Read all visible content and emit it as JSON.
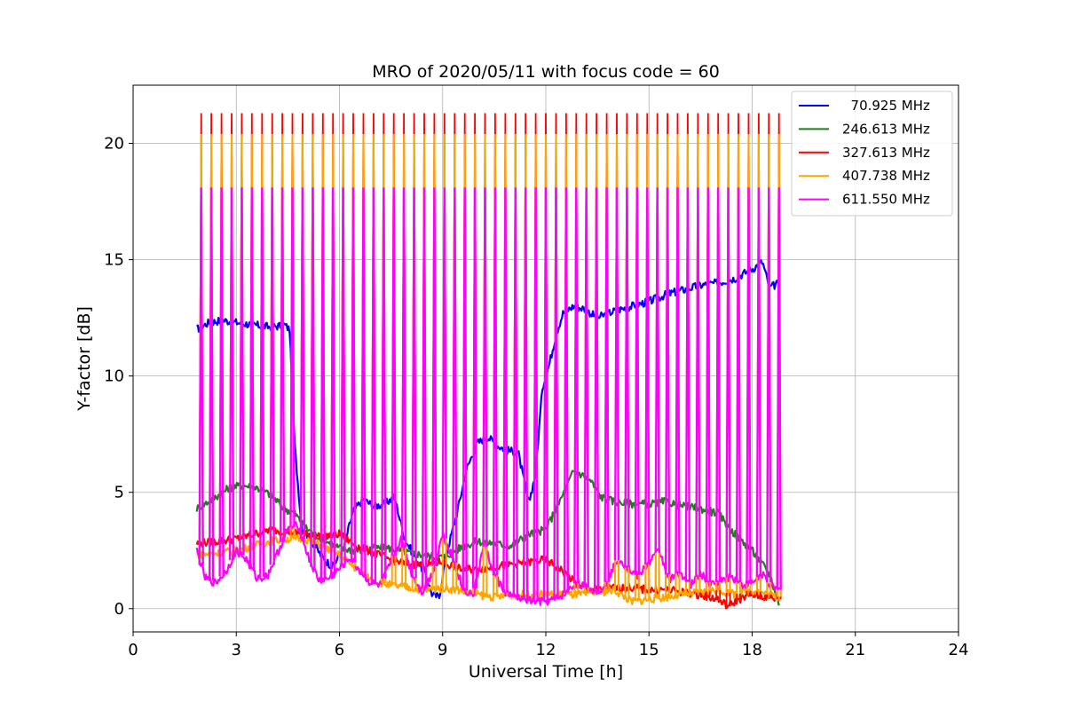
{
  "chart_data": {
    "type": "line",
    "title": "MRO of 2020/05/11 with focus code = 60",
    "xlabel": "Universal Time [h]",
    "ylabel": "Y-factor [dB]",
    "xlim": [
      0,
      24
    ],
    "ylim": [
      -1,
      22.5
    ],
    "xticks": [
      0,
      3,
      6,
      9,
      12,
      15,
      18,
      21,
      24
    ],
    "yticks": [
      0,
      5,
      10,
      15,
      20
    ],
    "grid": true,
    "legend_position": "top-right",
    "pulse_spikes": {
      "description_source": "periodic calibration spikes present in all series",
      "start_time": 1.98,
      "end_time": 18.78,
      "count": 58,
      "peak_values": {
        "70.925 MHz": 21.3,
        "246.613 MHz": 21.3,
        "327.613 MHz": 21.3,
        "407.738 MHz": 20.4,
        "611.550 MHz": 18.1
      }
    },
    "series": [
      {
        "name": "  70.925 MHz",
        "color": "#0000ff",
        "x": [
          1.85,
          2.2,
          2.6,
          3.0,
          3.5,
          4.0,
          4.4,
          4.55,
          4.7,
          4.9,
          5.2,
          5.5,
          5.8,
          6.1,
          6.4,
          6.7,
          7.0,
          7.3,
          7.6,
          7.9,
          8.2,
          8.5,
          8.7,
          8.9,
          9.1,
          9.4,
          9.7,
          10.0,
          10.3,
          10.6,
          10.9,
          11.2,
          11.5,
          11.7,
          11.9,
          12.1,
          12.3,
          12.5,
          12.8,
          13.1,
          13.5,
          14.0,
          14.5,
          15.0,
          15.5,
          16.0,
          16.5,
          17.0,
          17.5,
          18.0,
          18.3,
          18.5,
          18.8
        ],
        "values": [
          12.0,
          12.3,
          12.4,
          12.3,
          12.2,
          12.1,
          12.2,
          12.0,
          7.0,
          3.5,
          2.9,
          2.2,
          1.8,
          2.5,
          4.2,
          4.7,
          4.4,
          4.5,
          4.8,
          3.0,
          2.2,
          1.5,
          0.6,
          0.5,
          2.3,
          4.0,
          6.0,
          7.1,
          7.4,
          7.0,
          6.8,
          6.7,
          4.5,
          5.8,
          9.5,
          10.5,
          11.8,
          12.7,
          13.0,
          12.9,
          12.5,
          12.8,
          13.0,
          13.2,
          13.5,
          13.7,
          13.9,
          14.0,
          14.2,
          14.6,
          14.9,
          13.8,
          14.0
        ]
      },
      {
        "name": "246.613 MHz",
        "color": "#1e7d1e",
        "x": [
          1.85,
          2.3,
          2.8,
          3.2,
          3.6,
          4.0,
          4.4,
          4.7,
          5.0,
          5.5,
          6.0,
          6.5,
          7.0,
          7.5,
          8.0,
          8.5,
          9.0,
          9.5,
          10.0,
          10.5,
          11.0,
          11.5,
          12.0,
          12.3,
          12.6,
          12.8,
          13.0,
          13.3,
          13.6,
          14.0,
          14.5,
          15.0,
          15.5,
          16.0,
          16.5,
          17.0,
          17.5,
          18.0,
          18.5,
          18.8
        ],
        "values": [
          4.3,
          4.7,
          5.2,
          5.3,
          5.2,
          4.9,
          4.3,
          4.1,
          3.5,
          3.0,
          2.6,
          2.5,
          2.6,
          2.6,
          2.4,
          2.3,
          2.2,
          2.6,
          2.9,
          2.8,
          2.7,
          3.2,
          3.4,
          4.3,
          5.2,
          5.9,
          5.8,
          5.5,
          4.8,
          4.6,
          4.5,
          4.5,
          4.6,
          4.4,
          4.3,
          4.1,
          3.2,
          2.5,
          1.5,
          0.1
        ]
      },
      {
        "name": "327.613 MHz",
        "color": "#ff0000",
        "x": [
          1.85,
          2.5,
          3.0,
          3.5,
          4.0,
          4.5,
          5.0,
          5.5,
          6.0,
          6.5,
          7.0,
          7.5,
          8.0,
          8.5,
          9.0,
          9.5,
          10.0,
          10.5,
          11.0,
          11.5,
          12.0,
          12.5,
          13.0,
          13.5,
          14.0,
          14.5,
          15.0,
          15.5,
          16.0,
          16.5,
          17.0,
          17.3,
          17.6,
          18.0,
          18.4,
          18.8
        ],
        "values": [
          2.8,
          2.9,
          3.0,
          3.2,
          3.4,
          3.3,
          3.2,
          3.1,
          3.2,
          2.7,
          2.4,
          2.1,
          1.9,
          1.9,
          2.0,
          1.7,
          1.7,
          1.8,
          1.9,
          2.0,
          2.1,
          1.6,
          0.9,
          0.8,
          0.9,
          0.9,
          0.8,
          0.8,
          0.7,
          0.6,
          0.4,
          0.1,
          0.4,
          0.6,
          0.5,
          0.4
        ]
      },
      {
        "name": "407.738 MHz",
        "color": "#ffa500",
        "x": [
          1.85,
          2.5,
          3.0,
          3.5,
          4.0,
          4.5,
          5.0,
          5.5,
          6.0,
          6.5,
          7.0,
          7.5,
          8.0,
          8.5,
          9.0,
          9.5,
          10.0,
          10.5,
          11.0,
          11.5,
          12.0,
          12.5,
          13.0,
          13.5,
          14.0,
          14.5,
          15.0,
          15.5,
          16.0,
          16.5,
          17.0,
          17.5,
          18.0,
          18.5,
          18.8
        ],
        "values": [
          2.3,
          2.4,
          2.5,
          2.7,
          2.9,
          3.0,
          3.0,
          2.7,
          2.3,
          1.7,
          1.2,
          1.0,
          0.9,
          0.8,
          0.9,
          0.8,
          0.6,
          0.5,
          0.6,
          0.6,
          0.6,
          0.6,
          0.6,
          0.7,
          0.8,
          0.3,
          0.4,
          0.5,
          0.6,
          0.7,
          0.8,
          0.6,
          0.8,
          0.6,
          0.5
        ]
      },
      {
        "name": "611.550 MHz",
        "color": "#ff00ff",
        "x": [
          1.85,
          2.1,
          2.4,
          2.7,
          3.0,
          3.3,
          3.6,
          3.9,
          4.2,
          4.5,
          4.8,
          5.1,
          5.4,
          5.7,
          6.0,
          6.3,
          6.6,
          6.9,
          7.2,
          7.5,
          7.8,
          8.1,
          8.4,
          8.7,
          9.0,
          9.3,
          9.6,
          9.9,
          10.2,
          10.5,
          10.8,
          11.1,
          11.4,
          11.7,
          12.0,
          12.3,
          12.6,
          12.9,
          13.2,
          13.5,
          13.8,
          14.1,
          14.4,
          14.7,
          15.0,
          15.3,
          15.6,
          15.9,
          16.2,
          16.5,
          16.8,
          17.1,
          17.4,
          17.7,
          18.0,
          18.3,
          18.6,
          18.8
        ],
        "values": [
          2.5,
          1.3,
          1.1,
          1.6,
          2.5,
          2.1,
          1.3,
          1.4,
          2.4,
          3.4,
          3.6,
          2.2,
          1.2,
          1.3,
          1.7,
          2.2,
          1.6,
          1.1,
          1.0,
          2.0,
          3.0,
          1.5,
          0.7,
          1.5,
          3.2,
          2.2,
          0.8,
          0.6,
          2.8,
          1.5,
          0.7,
          0.5,
          0.4,
          0.3,
          0.3,
          0.4,
          0.7,
          1.1,
          0.9,
          0.7,
          1.2,
          2.2,
          1.7,
          1.4,
          2.0,
          2.5,
          1.2,
          1.6,
          1.0,
          1.5,
          1.0,
          1.2,
          1.4,
          1.0,
          1.1,
          1.5,
          0.9,
          0.8
        ]
      }
    ]
  }
}
